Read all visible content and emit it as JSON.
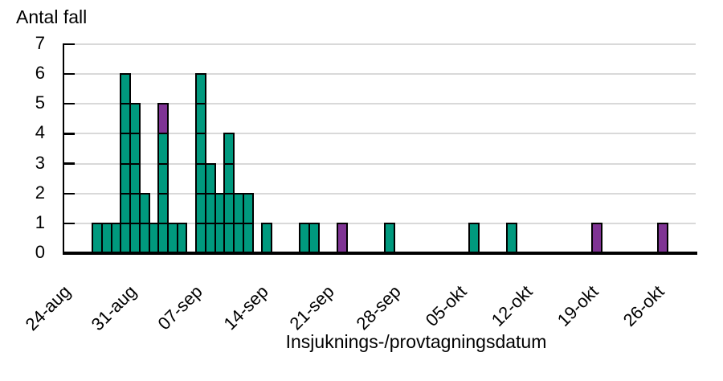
{
  "chart_data": {
    "type": "bar",
    "subtype": "epi-curve-stacked-unit-squares",
    "title": "Antal fall",
    "xlabel": "Insjuknings-/provtagningsdatum",
    "ylabel": "Antal fall",
    "ylim": [
      0,
      7
    ],
    "y_ticks": [
      0,
      1,
      2,
      3,
      4,
      5,
      6,
      7
    ],
    "grid": true,
    "legend": "none",
    "x_span_days": 67,
    "x_tick_interval_days": 7,
    "x_ticks": [
      {
        "day": 0,
        "label": "24-aug"
      },
      {
        "day": 7,
        "label": "31-aug"
      },
      {
        "day": 14,
        "label": "07-sep"
      },
      {
        "day": 21,
        "label": "14-sep"
      },
      {
        "day": 28,
        "label": "21-sep"
      },
      {
        "day": 35,
        "label": "28-sep"
      },
      {
        "day": 42,
        "label": "05-okt"
      },
      {
        "day": 49,
        "label": "12-okt"
      },
      {
        "day": 56,
        "label": "19-okt"
      },
      {
        "day": 63,
        "label": "26-okt"
      }
    ],
    "series": [
      {
        "name": "teal-cases",
        "color": "#00997E"
      },
      {
        "name": "purple-cases",
        "color": "#7F3494"
      }
    ],
    "bars": [
      {
        "day": 3,
        "date": "27-aug",
        "teal": 1,
        "purple": 0
      },
      {
        "day": 4,
        "date": "28-aug",
        "teal": 1,
        "purple": 0
      },
      {
        "day": 5,
        "date": "29-aug",
        "teal": 1,
        "purple": 0
      },
      {
        "day": 6,
        "date": "30-aug",
        "teal": 6,
        "purple": 0
      },
      {
        "day": 7,
        "date": "31-aug",
        "teal": 5,
        "purple": 0
      },
      {
        "day": 8,
        "date": "01-sep",
        "teal": 2,
        "purple": 0
      },
      {
        "day": 9,
        "date": "02-sep",
        "teal": 1,
        "purple": 0
      },
      {
        "day": 10,
        "date": "03-sep",
        "teal": 4,
        "purple": 1
      },
      {
        "day": 11,
        "date": "04-sep",
        "teal": 1,
        "purple": 0
      },
      {
        "day": 12,
        "date": "05-sep",
        "teal": 1,
        "purple": 0
      },
      {
        "day": 14,
        "date": "07-sep",
        "teal": 6,
        "purple": 0
      },
      {
        "day": 15,
        "date": "08-sep",
        "teal": 3,
        "purple": 0
      },
      {
        "day": 16,
        "date": "09-sep",
        "teal": 2,
        "purple": 0
      },
      {
        "day": 17,
        "date": "10-sep",
        "teal": 4,
        "purple": 0
      },
      {
        "day": 18,
        "date": "11-sep",
        "teal": 2,
        "purple": 0
      },
      {
        "day": 19,
        "date": "12-sep",
        "teal": 2,
        "purple": 0
      },
      {
        "day": 21,
        "date": "14-sep",
        "teal": 1,
        "purple": 0
      },
      {
        "day": 25,
        "date": "18-sep",
        "teal": 1,
        "purple": 0
      },
      {
        "day": 26,
        "date": "19-sep",
        "teal": 1,
        "purple": 0
      },
      {
        "day": 29,
        "date": "22-sep",
        "teal": 0,
        "purple": 1
      },
      {
        "day": 34,
        "date": "27-sep",
        "teal": 1,
        "purple": 0
      },
      {
        "day": 43,
        "date": "06-okt",
        "teal": 1,
        "purple": 0
      },
      {
        "day": 47,
        "date": "10-okt",
        "teal": 1,
        "purple": 0
      },
      {
        "day": 56,
        "date": "19-okt",
        "teal": 0,
        "purple": 1
      },
      {
        "day": 63,
        "date": "26-okt",
        "teal": 0,
        "purple": 1
      }
    ],
    "colors": {
      "teal": "#00997E",
      "purple": "#7F3494",
      "gridline": "#D9D9D9",
      "axis": "#000000",
      "cell_border": "#000000",
      "background": "#FFFFFF"
    }
  }
}
